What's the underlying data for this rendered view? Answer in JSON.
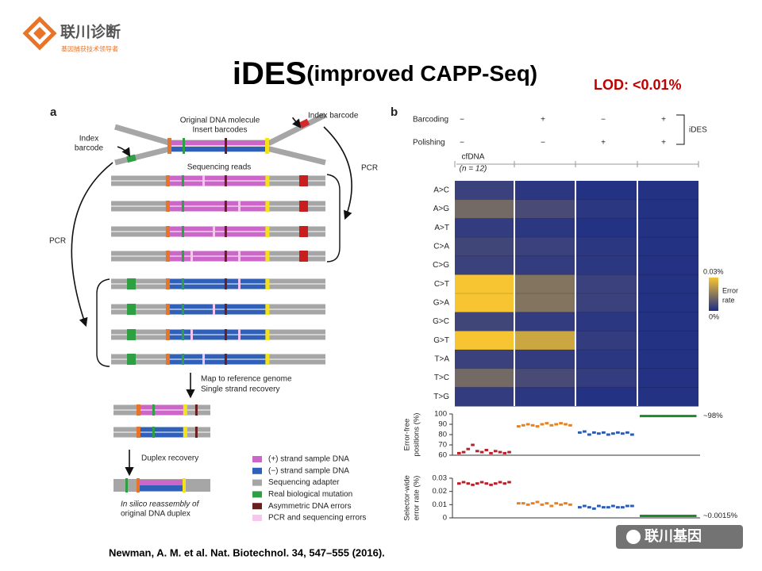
{
  "logo": {
    "name": "联川诊断",
    "tagline": "基因捕获技术领导者"
  },
  "title": {
    "main": "iDES",
    "sub": "(improved CAPP-Seq)"
  },
  "lod": "LOD: <0.01%",
  "panel_a": {
    "label": "a",
    "labels": {
      "original": "Original DNA molecule",
      "insert": "Insert barcodes",
      "index_right": "Index barcode",
      "index_left_1": "Index",
      "index_left_2": "barcode",
      "reads": "Sequencing reads",
      "pcr_right": "PCR",
      "pcr_left": "PCR",
      "map_1": "Map to reference genome",
      "map_2": "Single strand recovery",
      "duplex": "Duplex recovery",
      "silico_1": "In silico reassembly of",
      "silico_2": "original DNA duplex"
    },
    "legend": [
      {
        "text": "(+) strand sample DNA",
        "color": "#cc66c8"
      },
      {
        "text": "(−) strand sample DNA",
        "color": "#3060b8"
      },
      {
        "text": "Sequencing adapter",
        "color": "#a6a6a6"
      },
      {
        "text": "Real biological mutation",
        "color": "#2ea043"
      },
      {
        "text": "Asymmetric DNA errors",
        "color": "#6b1e1e"
      },
      {
        "text": "PCR and sequencing errors",
        "color": "#f6c6ee"
      }
    ]
  },
  "panel_b": {
    "label": "b",
    "conditions": {
      "rows": [
        "Barcoding",
        "Polishing"
      ],
      "values": [
        [
          "−",
          "+",
          "−",
          "+"
        ],
        [
          "−",
          "−",
          "+",
          "+"
        ]
      ],
      "bracket": "iDES"
    },
    "cfdna": "cfDNA",
    "n": "(n = 12)",
    "heatmap": {
      "rows": [
        "A>C",
        "A>G",
        "A>T",
        "C>A",
        "C>G",
        "C>T",
        "G>A",
        "G>C",
        "G>T",
        "T>A",
        "T>C",
        "T>G"
      ],
      "values": [
        [
          0.004,
          0.002,
          0.001,
          0.001
        ],
        [
          0.012,
          0.006,
          0.002,
          0.001
        ],
        [
          0.003,
          0.002,
          0.001,
          0.001
        ],
        [
          0.005,
          0.004,
          0.002,
          0.001
        ],
        [
          0.004,
          0.003,
          0.002,
          0.001
        ],
        [
          0.03,
          0.014,
          0.004,
          0.001
        ],
        [
          0.03,
          0.014,
          0.004,
          0.001
        ],
        [
          0.005,
          0.003,
          0.002,
          0.001
        ],
        [
          0.03,
          0.024,
          0.003,
          0.001
        ],
        [
          0.004,
          0.003,
          0.002,
          0.001
        ],
        [
          0.012,
          0.006,
          0.003,
          0.001
        ],
        [
          0.003,
          0.002,
          0.001,
          0.001
        ]
      ],
      "clim": [
        {
          "value": 0,
          "label": "0%"
        },
        {
          "value": 0.03,
          "label": "0.03%"
        }
      ],
      "colorbar_label": [
        "Error",
        "rate"
      ],
      "colors": [
        "#1d2d87",
        "#f7c531"
      ]
    },
    "error_free": {
      "type": "dot",
      "ylabel": [
        "Error-free",
        "positions (%)"
      ],
      "ylim": [
        60,
        100
      ],
      "yticks": [
        60,
        70,
        80,
        90,
        100
      ],
      "annotation": "~98%",
      "series": [
        {
          "color": "#b8202a",
          "values": [
            62,
            63,
            66,
            70,
            64,
            63,
            65,
            62,
            64,
            63,
            62,
            63
          ]
        },
        {
          "color": "#e8801e",
          "values": [
            88,
            89,
            90,
            89,
            88,
            90,
            91,
            89,
            90,
            91,
            90,
            89
          ]
        },
        {
          "color": "#2f5bb0",
          "values": [
            82,
            83,
            80,
            82,
            81,
            82,
            80,
            81,
            82,
            81,
            82,
            80
          ]
        },
        {
          "color": "#1e8a2a",
          "values": [
            98,
            98,
            98,
            98,
            98,
            98,
            98,
            98,
            98,
            98,
            98,
            98
          ]
        }
      ]
    },
    "error_rate": {
      "type": "dot",
      "ylabel": [
        "Selector-wide",
        "error rate (%)"
      ],
      "ylim": [
        0,
        0.03
      ],
      "yticks": [
        0,
        0.01,
        0.02,
        0.03
      ],
      "annotation": "~0.0015%",
      "series": [
        {
          "color": "#b8202a",
          "values": [
            0.026,
            0.027,
            0.026,
            0.025,
            0.026,
            0.027,
            0.026,
            0.025,
            0.026,
            0.027,
            0.026,
            0.027
          ]
        },
        {
          "color": "#e8801e",
          "values": [
            0.011,
            0.011,
            0.01,
            0.011,
            0.012,
            0.01,
            0.011,
            0.009,
            0.011,
            0.01,
            0.011,
            0.01
          ]
        },
        {
          "color": "#2f5bb0",
          "values": [
            0.008,
            0.009,
            0.008,
            0.007,
            0.009,
            0.008,
            0.008,
            0.009,
            0.008,
            0.008,
            0.009,
            0.009
          ]
        },
        {
          "color": "#1e8a2a",
          "values": [
            0.0015,
            0.0015,
            0.0015,
            0.0015,
            0.0015,
            0.0015,
            0.0015,
            0.0015,
            0.0015,
            0.0015,
            0.0015,
            0.0015
          ]
        }
      ]
    }
  },
  "citation": "Newman, A. M. et al. Nat. Biotechnol. 34, 547–555 (2016).",
  "watermark": "联川基因"
}
